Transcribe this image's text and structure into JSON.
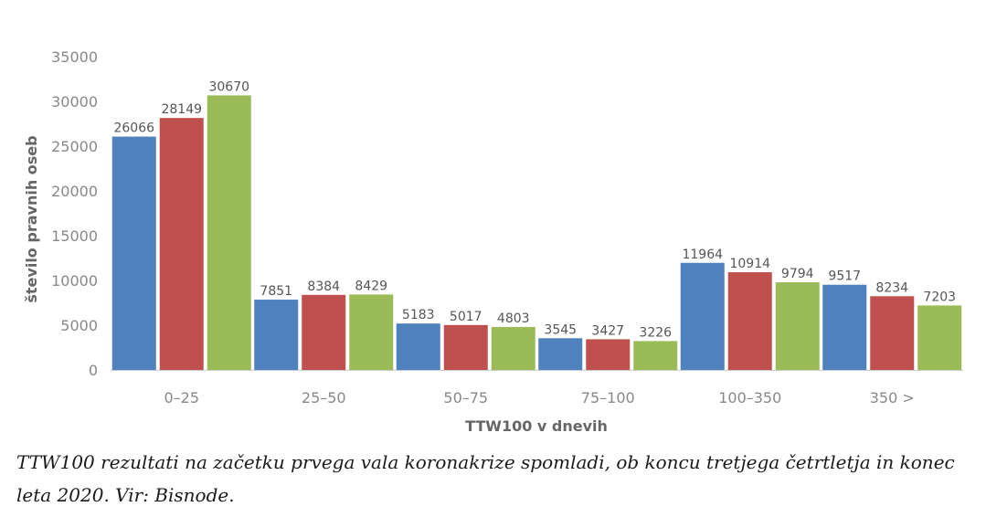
{
  "chart_data": {
    "type": "bar",
    "categories": [
      "0–25",
      "25–50",
      "50–75",
      "75–100",
      "100–350",
      "350 >"
    ],
    "series": [
      {
        "values": [
          26066,
          7851,
          5183,
          3545,
          11964,
          9517
        ]
      },
      {
        "values": [
          28149,
          8384,
          5017,
          3427,
          10914,
          8234
        ]
      },
      {
        "values": [
          30670,
          8429,
          4803,
          3226,
          9794,
          7203
        ]
      }
    ],
    "colors": [
      "#4f81bd",
      "#c0504d",
      "#9bbb59"
    ],
    "xlabel": "TTW100 v dnevih",
    "ylabel": "število pravnih oseb",
    "ylim": [
      0,
      35000
    ],
    "yticks": [
      0,
      5000,
      10000,
      15000,
      20000,
      25000,
      30000,
      35000
    ],
    "grid": false,
    "legend": "none"
  },
  "caption": "TTW100 rezultati na začetku prvega vala koronakrize spomladi, ob koncu tretjega četrtletja in konec leta 2020. Vir: Bisnode."
}
